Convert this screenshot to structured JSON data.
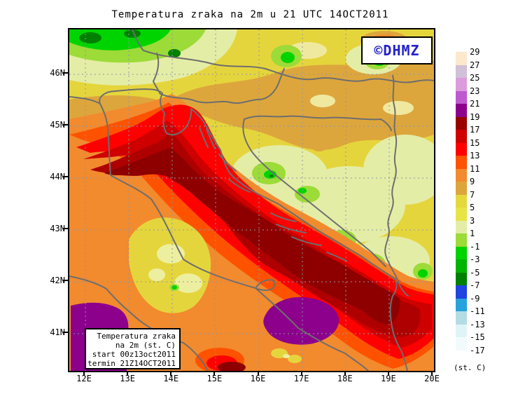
{
  "title": "Temperatura zraka na 2m u 21 UTC 14OCT2011",
  "copyright_badge": {
    "text": "©DHMZ",
    "color": "#2222CC"
  },
  "info_box": {
    "lines": [
      "Temperatura zraka",
      "na 2m (st. C)",
      "start 00z13oct2011",
      "termin 21Z14OCT2011"
    ]
  },
  "axes": {
    "lat_labels": [
      "46N",
      "45N",
      "44N",
      "43N",
      "42N",
      "41N"
    ],
    "lon_labels": [
      "12E",
      "13E",
      "14E",
      "15E",
      "16E",
      "17E",
      "18E",
      "19E",
      "20E"
    ]
  },
  "colorbar": {
    "unit_label": "(st. C)",
    "tick_labels": [
      "29",
      "27",
      "25",
      "23",
      "21",
      "19",
      "17",
      "15",
      "13",
      "11",
      "9",
      "7",
      "5",
      "3",
      "1",
      "-1",
      "-3",
      "-5",
      "-7",
      "-9",
      "-11",
      "-13",
      "-15",
      "-17"
    ],
    "cell_colors": [
      "#FCE8CC",
      "#D0C0D8",
      "#DC9CDC",
      "#BE5ACF",
      "#8C008C",
      "#9A0000",
      "#CE0000",
      "#FE0000",
      "#FE5200",
      "#F28A2E",
      "#DDA63C",
      "#E5D83C",
      "#E7E545",
      "#E4EDA6",
      "#9CDB38",
      "#00D400",
      "#00B400",
      "#008000",
      "#2143DE",
      "#28A2DC",
      "#B4DCE4",
      "#DFF4F6",
      "#F2FBFC"
    ]
  },
  "map_palette": {
    "grid_color": "#8A98A8",
    "coast_color": "#6E6E6E"
  }
}
